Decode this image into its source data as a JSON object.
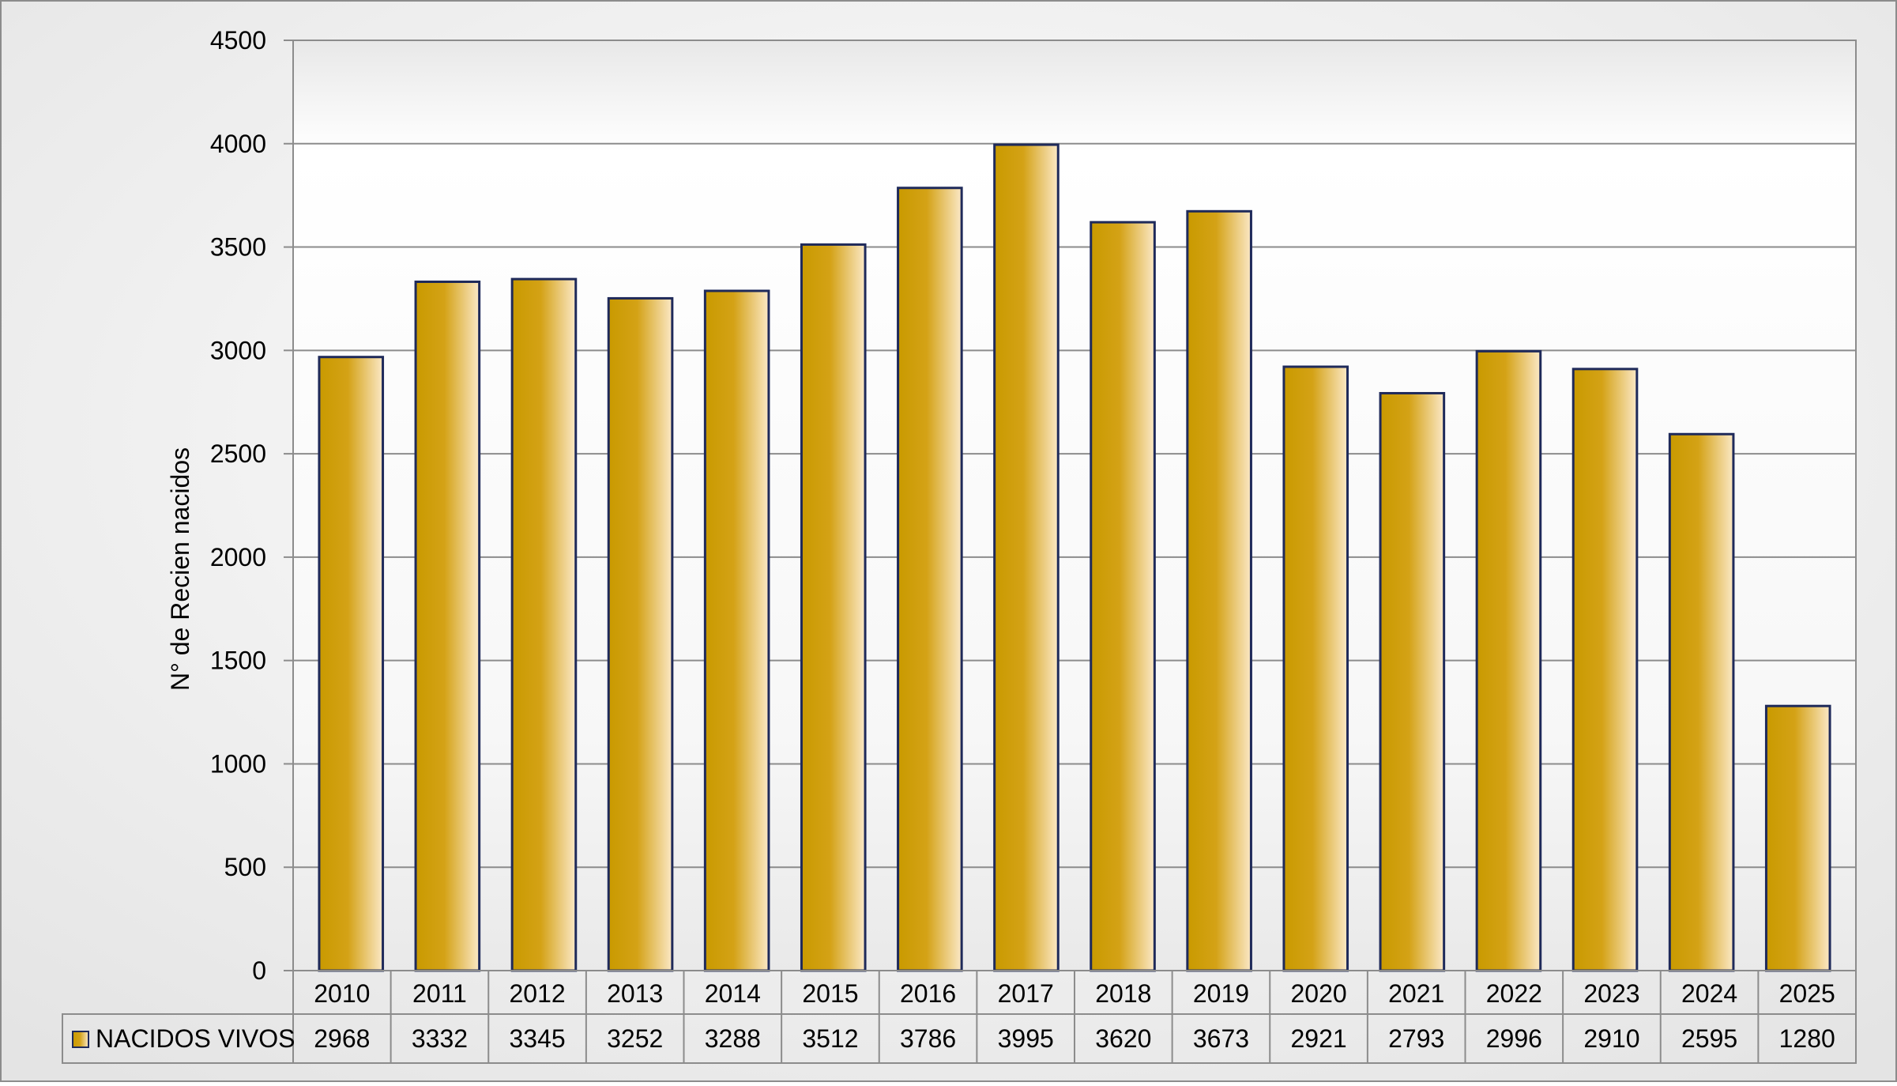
{
  "chart_data": {
    "type": "bar",
    "title": "",
    "xlabel": "",
    "ylabel": "N° de Recien nacidos",
    "ylim": [
      0,
      4500
    ],
    "y_ticks": [
      0,
      500,
      1000,
      1500,
      2000,
      2500,
      3000,
      3500,
      4000,
      4500
    ],
    "grid": true,
    "legend_placement": "data-table",
    "categories": [
      "2010",
      "2011",
      "2012",
      "2013",
      "2014",
      "2015",
      "2016",
      "2017",
      "2018",
      "2019",
      "2020",
      "2021",
      "2022",
      "2023",
      "2024",
      "2025"
    ],
    "series": [
      {
        "name": "NACIDOS VIVOS",
        "values": [
          2968,
          3332,
          3345,
          3252,
          3288,
          3512,
          3786,
          3995,
          3620,
          3673,
          2921,
          2793,
          2996,
          2910,
          2595,
          1280
        ],
        "color": "#cc9900",
        "outline": "#1f2a5a"
      }
    ]
  }
}
